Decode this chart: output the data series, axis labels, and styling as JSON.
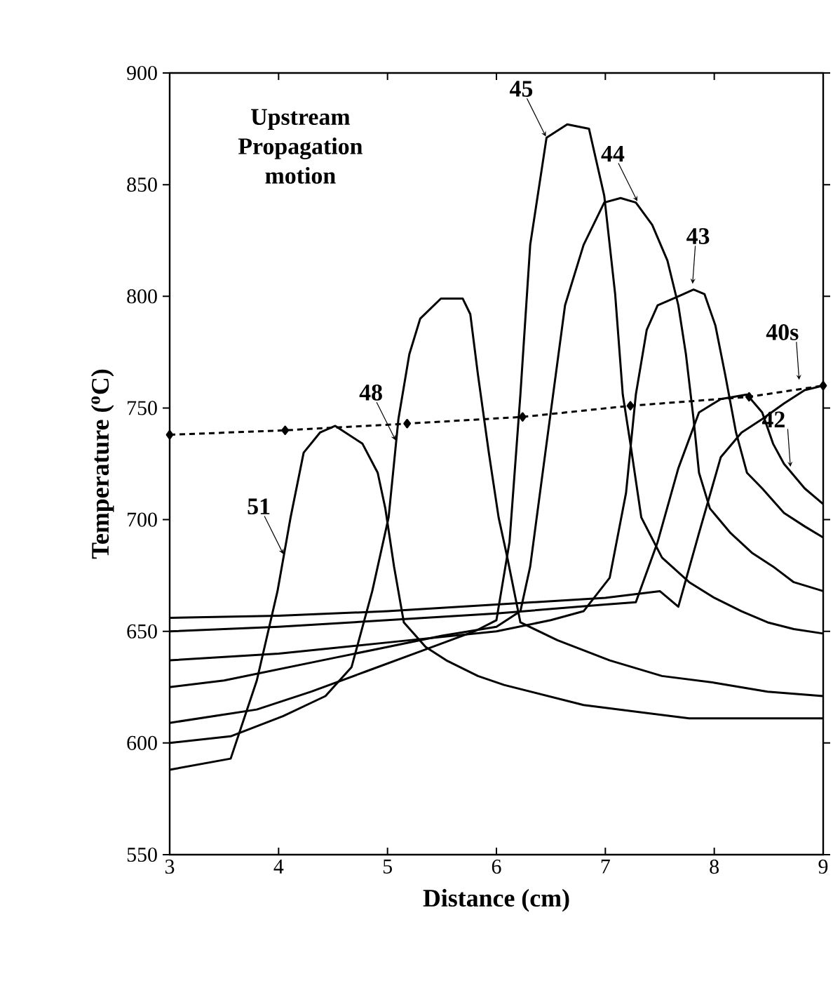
{
  "chart_data": {
    "type": "line",
    "xlabel": "Distance (cm)",
    "ylabel": "Temperature ($^{o}$C)",
    "xlim": [
      3,
      9
    ],
    "ylim": [
      550,
      900
    ],
    "xticks": [
      3,
      4,
      5,
      6,
      7,
      8,
      9
    ],
    "yticks": [
      550,
      600,
      650,
      700,
      750,
      800,
      850,
      900
    ],
    "grid": false,
    "marker": "none",
    "line_style": "solid",
    "series": [
      {
        "color": "#000000",
        "x": [
          3,
          3.56,
          3.8,
          3.99,
          4.11,
          4.23,
          4.38,
          4.52,
          4.77,
          4.91,
          4.98,
          5.06,
          5.15,
          5.35,
          5.54,
          5.83,
          6.07,
          6.8,
          7.77,
          9
        ],
        "values": [
          588,
          593,
          628,
          668,
          701,
          730,
          739,
          742,
          734,
          721,
          705,
          679,
          654,
          643,
          637,
          630,
          626,
          617,
          611,
          611
        ]
      },
      {
        "color": "#000000",
        "x": [
          3,
          3.56,
          4.04,
          4.43,
          4.67,
          4.86,
          5.01,
          5.1,
          5.2,
          5.3,
          5.49,
          5.69,
          5.76,
          5.83,
          5.93,
          6.02,
          6.1,
          6.22,
          6.56,
          7.04,
          7.52,
          8.0,
          8.49,
          9
        ],
        "values": [
          600,
          603,
          612,
          621,
          634,
          668,
          701,
          745,
          774,
          790,
          799,
          799,
          792,
          765,
          730,
          701,
          683,
          654,
          646,
          637,
          630,
          627,
          623,
          621
        ]
      },
      {
        "color": "#000000",
        "x": [
          3,
          3.8,
          4.3,
          4.8,
          5.3,
          5.8,
          6.0,
          6.12,
          6.22,
          6.31,
          6.46,
          6.65,
          6.85,
          6.99,
          7.09,
          7.16,
          7.23,
          7.33,
          7.52,
          7.77,
          8.0,
          8.25,
          8.49,
          8.73,
          9
        ],
        "values": [
          609,
          615,
          623,
          632,
          641,
          650,
          655,
          690,
          756,
          823,
          871,
          877,
          875,
          845,
          801,
          756,
          734,
          701,
          683,
          672,
          665,
          659,
          654,
          651,
          649
        ]
      },
      {
        "color": "#000000",
        "x": [
          3,
          3.5,
          4.0,
          4.5,
          5.0,
          5.5,
          6.0,
          6.22,
          6.31,
          6.46,
          6.63,
          6.8,
          6.99,
          7.14,
          7.28,
          7.43,
          7.57,
          7.67,
          7.74,
          7.81,
          7.86,
          7.96,
          8.15,
          8.35,
          8.54,
          8.73,
          9
        ],
        "values": [
          625,
          628,
          633,
          638,
          643,
          648,
          652,
          659,
          679,
          734,
          796,
          823,
          842,
          844,
          842,
          832,
          816,
          796,
          774,
          745,
          721,
          705,
          694,
          685,
          679,
          672,
          668
        ]
      },
      {
        "color": "#000000",
        "x": [
          3,
          4,
          5,
          6,
          6.5,
          6.8,
          7.04,
          7.19,
          7.28,
          7.38,
          7.48,
          7.67,
          7.81,
          7.91,
          8.01,
          8.1,
          8.2,
          8.3,
          8.44,
          8.64,
          8.83,
          9
        ],
        "values": [
          637,
          640,
          645,
          650,
          655,
          659,
          674,
          712,
          756,
          785,
          796,
          800,
          803,
          801,
          787,
          765,
          739,
          721,
          714,
          703,
          697,
          692
        ]
      },
      {
        "color": "#000000",
        "x": [
          3,
          4,
          5,
          6,
          7,
          7.28,
          7.48,
          7.67,
          7.86,
          8.06,
          8.3,
          8.44,
          8.54,
          8.64,
          8.83,
          9
        ],
        "values": [
          650,
          652,
          655,
          658,
          662,
          663,
          690,
          723,
          748,
          754,
          756,
          748,
          734,
          725,
          714,
          707
        ]
      },
      {
        "color": "#000000",
        "x": [
          3,
          4,
          5,
          6,
          7,
          7.5,
          7.67,
          7.86,
          8.06,
          8.25,
          8.44,
          8.64,
          8.83,
          9
        ],
        "values": [
          656,
          657,
          659,
          662,
          665,
          668,
          661,
          694,
          728,
          739,
          745,
          752,
          758,
          760
        ]
      },
      {
        "color": "#000000",
        "marker": "diamond",
        "line_style": "dashed",
        "x": [
          3,
          4.06,
          5.18,
          6.24,
          7.23,
          8.32,
          9
        ],
        "values": [
          738,
          740,
          743,
          746,
          751,
          755,
          760
        ]
      }
    ],
    "annotations": [
      "Upstream Propagation motion",
      {
        "text": "51",
        "x": 4.05,
        "y": 684
      },
      {
        "text": "48",
        "x": 5.08,
        "y": 735
      },
      {
        "text": "45",
        "x": 6.46,
        "y": 871
      },
      {
        "text": "44",
        "x": 7.3,
        "y": 842
      },
      {
        "text": "43",
        "x": 7.8,
        "y": 805
      },
      {
        "text": "40s",
        "x": 8.78,
        "y": 762
      },
      {
        "text": "42",
        "x": 8.7,
        "y": 723
      }
    ]
  }
}
